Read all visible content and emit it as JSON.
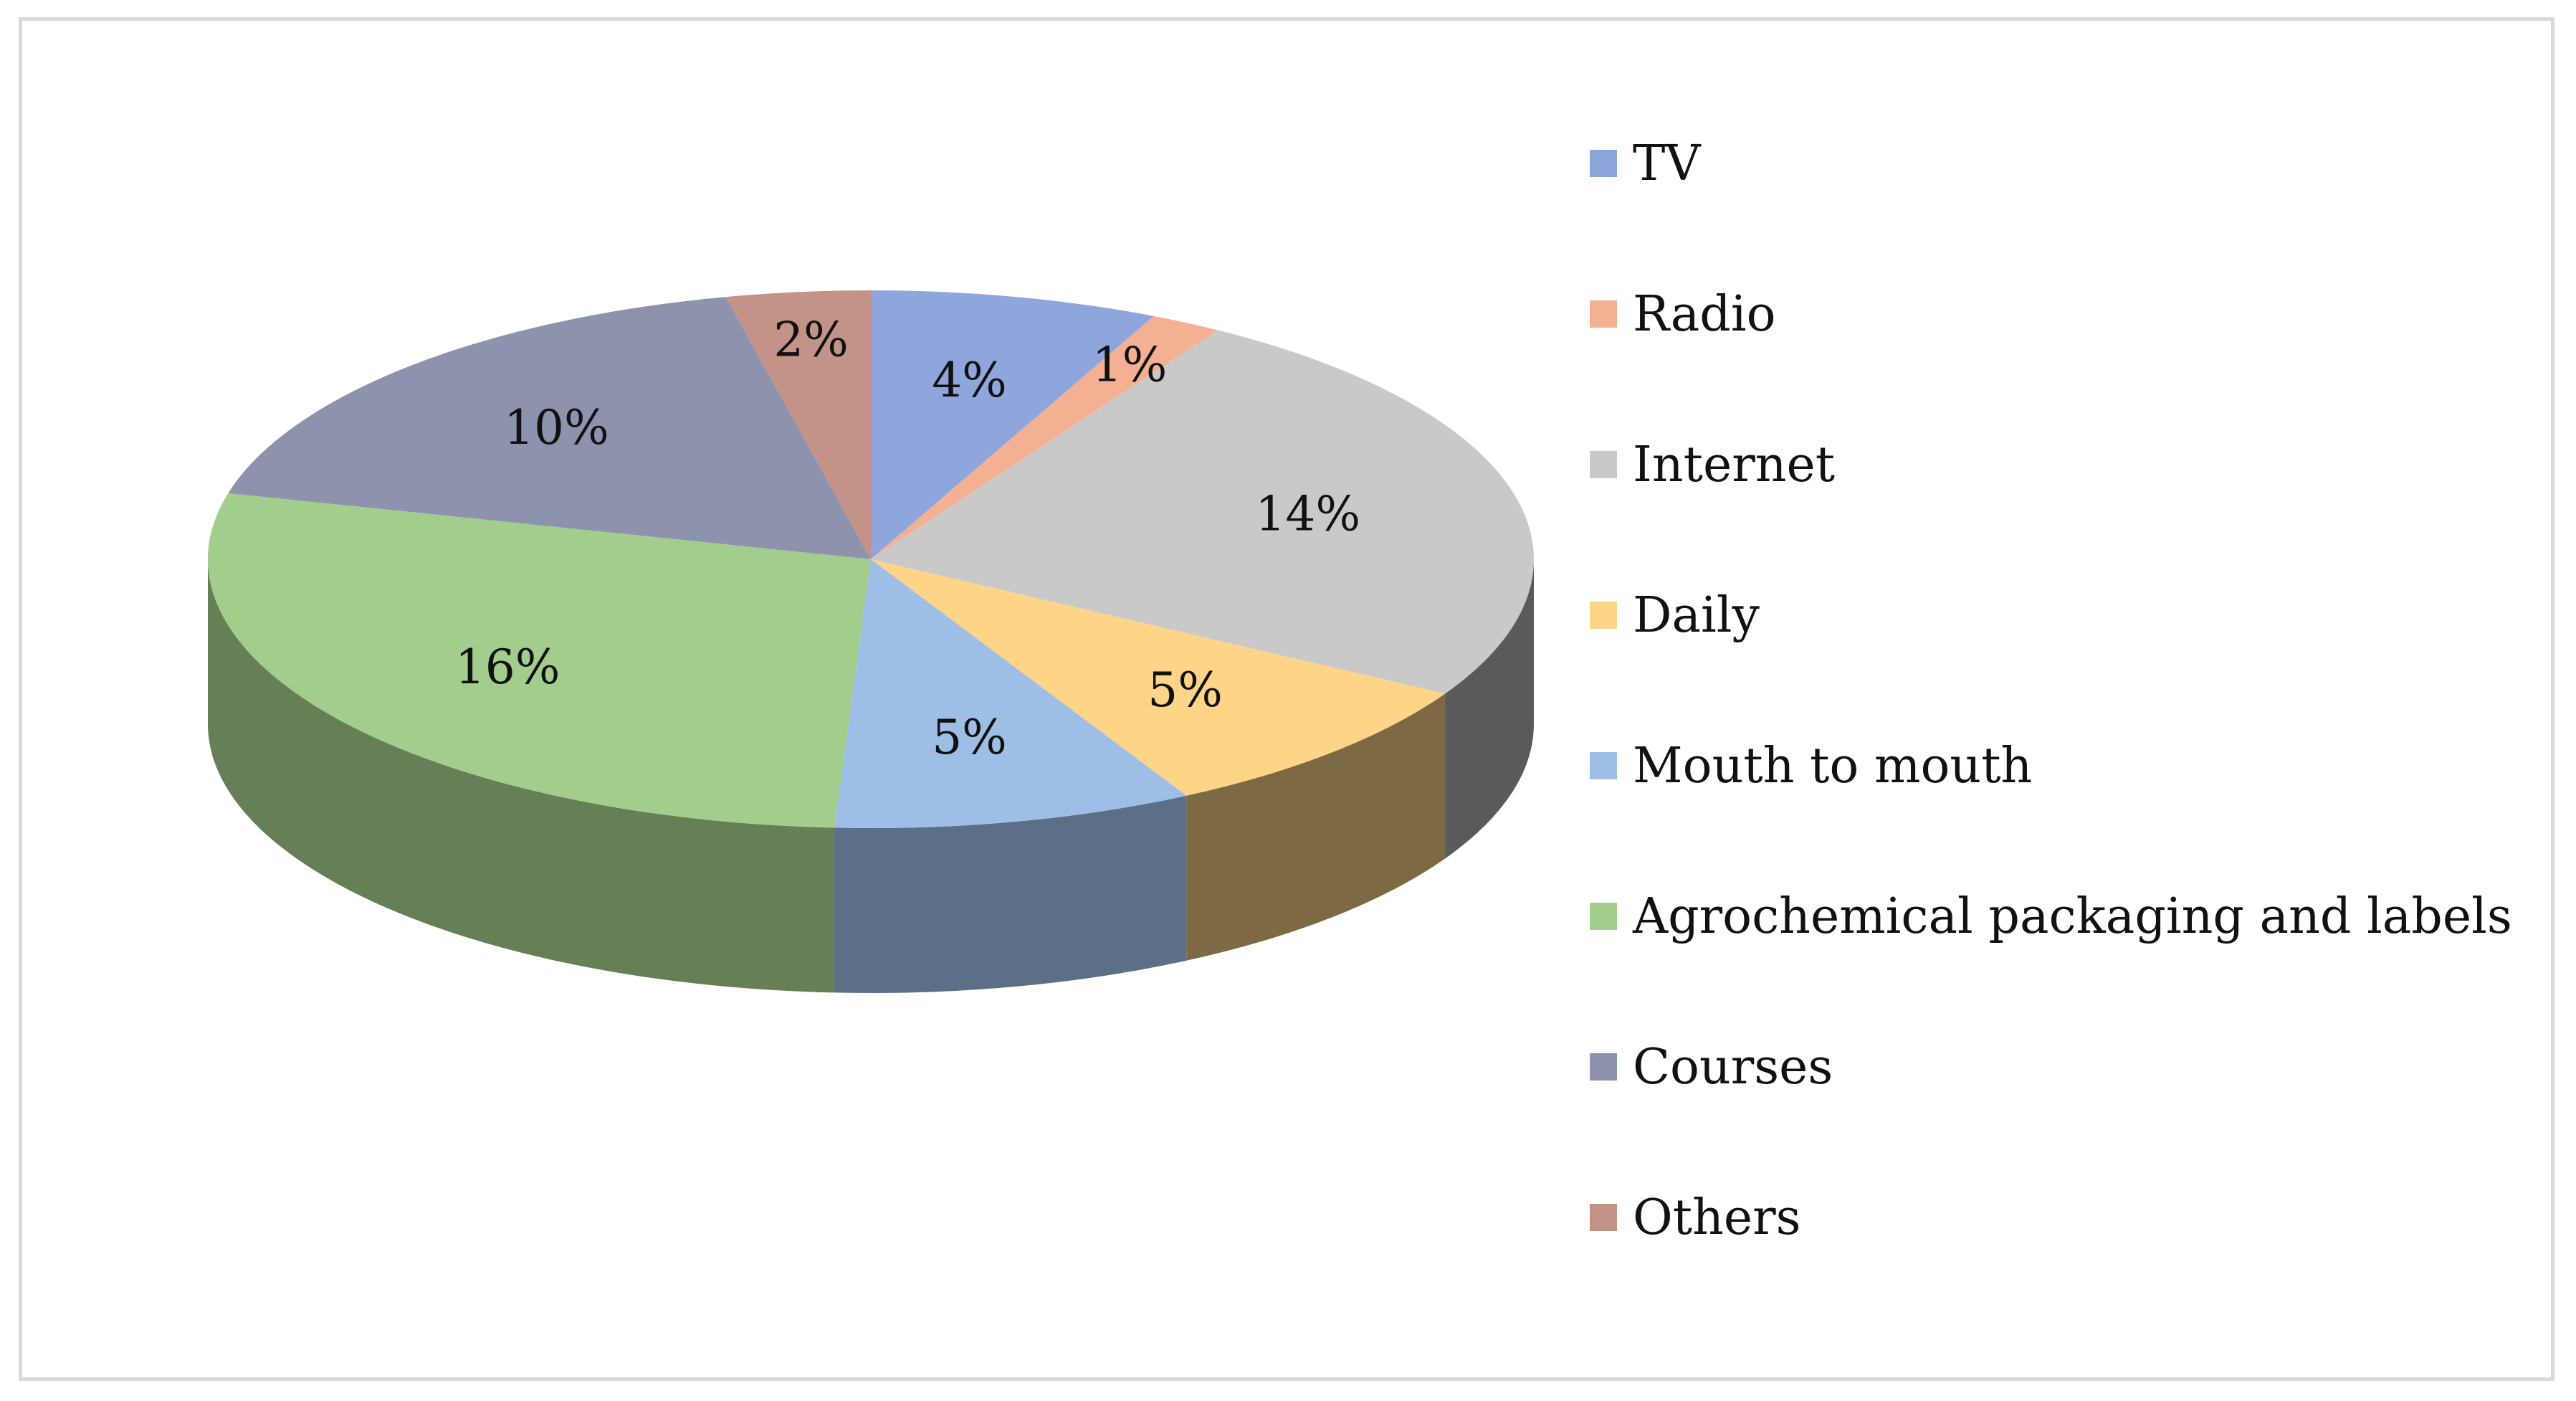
{
  "chart_data": {
    "type": "pie",
    "style": "3d",
    "title": "",
    "legend_position": "right",
    "slices": [
      {
        "label": "TV",
        "value": 4,
        "display": "4%",
        "color": "#8ea6dc"
      },
      {
        "label": "Radio",
        "value": 1,
        "display": "1%",
        "color": "#f4b093"
      },
      {
        "label": "Internet",
        "value": 14,
        "display": "14%",
        "color": "#c9c9c9"
      },
      {
        "label": "Daily",
        "value": 5,
        "display": "5%",
        "color": "#fdd488"
      },
      {
        "label": "Mouth to mouth",
        "value": 5,
        "display": "5%",
        "color": "#9dbfe6"
      },
      {
        "label": "Agrochemical packaging and labels",
        "value": 16,
        "display": "16%",
        "color": "#a3cd8c"
      },
      {
        "label": "Courses",
        "value": 10,
        "display": "10%",
        "color": "#8e93ad"
      },
      {
        "label": "Others",
        "value": 2,
        "display": "2%",
        "color": "#c49387"
      }
    ]
  }
}
